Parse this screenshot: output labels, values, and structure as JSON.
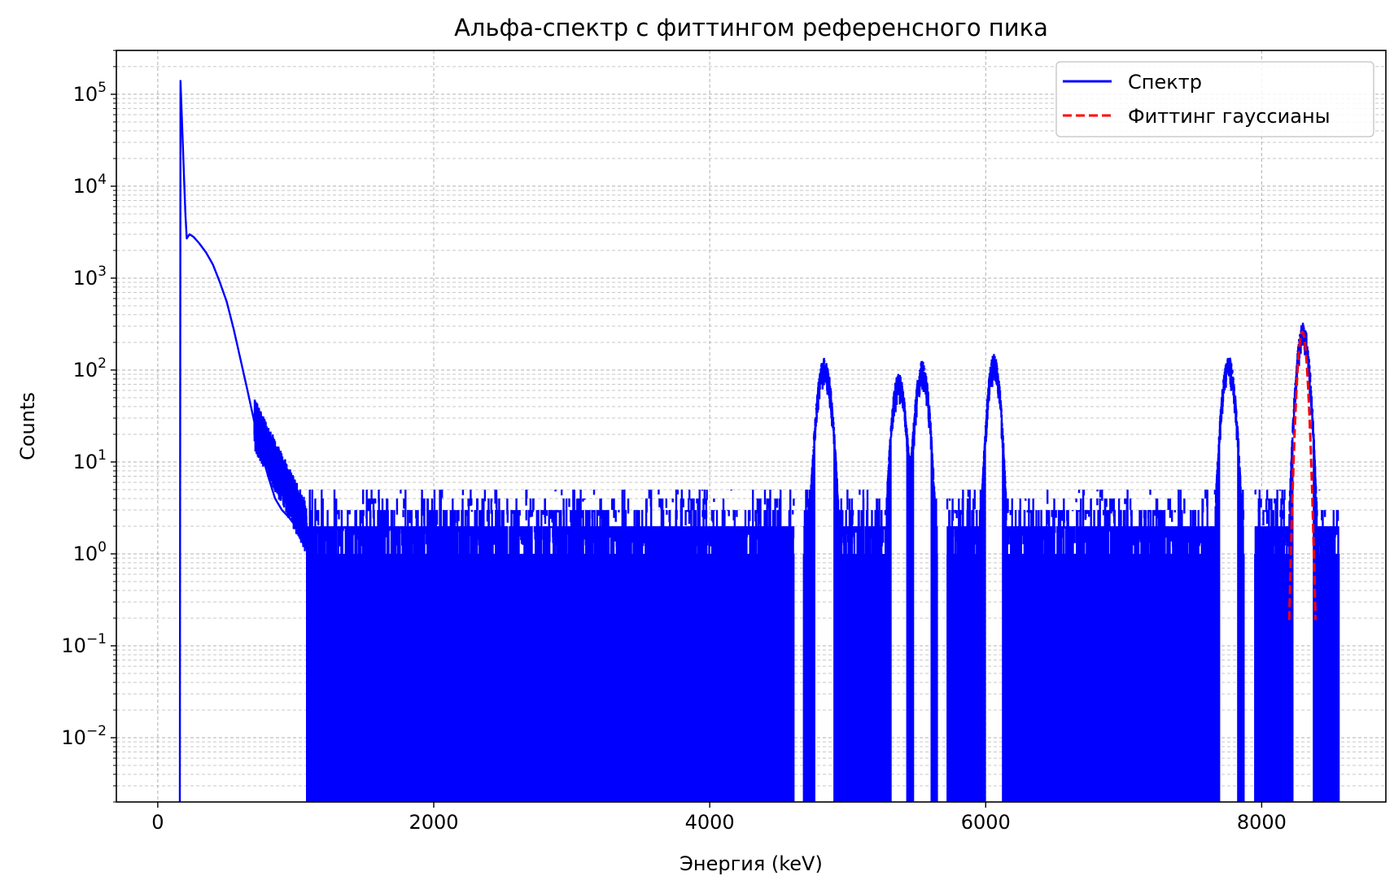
{
  "chart_data": {
    "type": "line",
    "title": "Альфа-спектр с фиттингом референсного пика",
    "xlabel": "Энергия (keV)",
    "ylabel": "Counts",
    "xlim": [
      -300,
      8900
    ],
    "ylim": [
      0.002,
      300000
    ],
    "yscale": "log",
    "xticks": [
      0,
      2000,
      4000,
      6000,
      8000
    ],
    "yticks": [
      {
        "value": 0.01,
        "base": "10",
        "exp": "−2"
      },
      {
        "value": 0.1,
        "base": "10",
        "exp": "−1"
      },
      {
        "value": 1,
        "base": "10",
        "exp": "0"
      },
      {
        "value": 10,
        "base": "10",
        "exp": "1"
      },
      {
        "value": 100,
        "base": "10",
        "exp": "2"
      },
      {
        "value": 1000,
        "base": "10",
        "exp": "3"
      },
      {
        "value": 10000,
        "base": "10",
        "exp": "4"
      },
      {
        "value": 100000,
        "base": "10",
        "exp": "5"
      }
    ],
    "grid": true,
    "legend_position": "top-right",
    "series": [
      {
        "name": "Спектр",
        "color": "#0000ff",
        "style": "solid",
        "x": [
          160,
          165,
          200,
          210,
          230,
          260,
          300,
          350,
          400,
          450,
          500,
          550,
          600,
          650,
          700,
          750,
          800,
          850,
          900,
          950,
          1000,
          1050
        ],
        "y": [
          0.002,
          140000,
          5000,
          2700,
          3000,
          2800,
          2400,
          1900,
          1400,
          900,
          550,
          280,
          130,
          60,
          27,
          13,
          7,
          4,
          3,
          2.5,
          2,
          1.5
        ],
        "noise_floor_range": [
          1080,
          8560
        ],
        "noise_typical_max": 2,
        "gaps": [
          [
            4610,
            4680
          ],
          [
            4740,
            4910
          ],
          [
            5260,
            5370
          ],
          [
            5620,
            5720
          ],
          [
            5960,
            6130
          ],
          [
            7870,
            7950
          ],
          [
            8200,
            8330
          ]
        ],
        "peaks": [
          {
            "center": 4830,
            "height": 120,
            "sigma": 38
          },
          {
            "center": 5370,
            "height": 82,
            "sigma": 35
          },
          {
            "center": 5540,
            "height": 110,
            "sigma": 35
          },
          {
            "center": 6060,
            "height": 130,
            "sigma": 33
          },
          {
            "center": 7760,
            "height": 125,
            "sigma": 35
          },
          {
            "center": 8300,
            "height": 290,
            "sigma": 33
          }
        ]
      },
      {
        "name": "Фиттинг гауссианы",
        "color": "#ff0000",
        "style": "dashed",
        "gaussian": {
          "center": 8295,
          "amplitude": 260,
          "sigma": 25,
          "x_range": [
            8200,
            8390
          ]
        }
      }
    ]
  }
}
